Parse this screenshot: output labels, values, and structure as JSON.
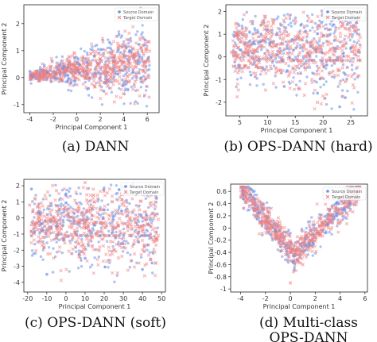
{
  "colors": {
    "source": "#6d8fe6",
    "target": "#f08080"
  },
  "chart_data": [
    {
      "type": "scatter",
      "shape": "dann",
      "caption": "(a) DANN",
      "xlabel": "Principal Component 1",
      "ylabel": "Principal Component 2",
      "xlim": [
        -4.5,
        7
      ],
      "ylim": [
        -1.3,
        2.7
      ],
      "xticks": [
        -4,
        -2,
        0,
        2,
        4,
        6
      ],
      "yticks": [
        -1,
        0,
        1,
        2
      ],
      "legend": {
        "position": "top-right",
        "entries": [
          "Source Domain",
          "Target Domain"
        ]
      },
      "series": [
        {
          "name": "Source Domain",
          "x": [
            -3.8,
            -2.5,
            -1.2,
            0.2,
            1.5,
            2.8,
            3.6,
            4.5,
            5.2,
            2.3,
            3.9,
            1.0,
            -0.5,
            4.8,
            5.8
          ],
          "y": [
            0.05,
            0.2,
            0.35,
            0.5,
            0.8,
            1.3,
            1.6,
            1.0,
            0.6,
            -0.5,
            -0.3,
            -0.4,
            -0.2,
            0.2,
            1.4
          ]
        },
        {
          "name": "Target Domain",
          "x": [
            -3.9,
            -3.0,
            -2.0,
            -1.0,
            0.0,
            1.0,
            2.0,
            3.0,
            3.5,
            4.0,
            1.5,
            -0.5,
            2.5,
            4.5
          ],
          "y": [
            0.0,
            0.1,
            0.2,
            0.3,
            0.35,
            0.5,
            0.7,
            0.9,
            1.1,
            0.8,
            -0.3,
            -0.2,
            -0.6,
            1.4
          ]
        }
      ]
    },
    {
      "type": "scatter",
      "shape": "band",
      "caption": "(b) OPS-DANN (hard)",
      "xlabel": "Principal Component 1",
      "ylabel": "Principal Component 2",
      "xlim": [
        2.5,
        28
      ],
      "ylim": [
        -2.6,
        2.3
      ],
      "xticks": [
        5,
        10,
        15,
        20,
        25
      ],
      "yticks": [
        -2,
        -1,
        0,
        1,
        2
      ],
      "legend": {
        "position": "top-right",
        "entries": [
          "Source Domain",
          "Target Domain"
        ]
      },
      "series": [
        {
          "name": "Source Domain",
          "x": [
            4,
            7,
            10,
            13,
            16,
            19,
            22,
            24,
            26,
            21,
            23,
            25
          ],
          "y": [
            0.9,
            -0.8,
            1.2,
            -1.3,
            1.4,
            -1.6,
            1.7,
            -1.8,
            1.5,
            2.0,
            -2.2,
            0.4
          ]
        },
        {
          "name": "Target Domain",
          "x": [
            3.5,
            6,
            9,
            12,
            15,
            18,
            21,
            24,
            26.5,
            14,
            19
          ],
          "y": [
            0.2,
            -0.4,
            0.5,
            -0.6,
            0.9,
            -1.0,
            1.2,
            -1.1,
            0.3,
            1.8,
            -2.0
          ]
        }
      ]
    },
    {
      "type": "scatter",
      "shape": "band",
      "caption": "(c) OPS-DANN (soft)",
      "xlabel": "Principal Component 1",
      "ylabel": "Principal Component 2",
      "xlim": [
        -22,
        52
      ],
      "ylim": [
        -4.6,
        2.4
      ],
      "xticks": [
        -20,
        -10,
        0,
        10,
        20,
        30,
        40,
        50
      ],
      "yticks": [
        -4,
        -3,
        -2,
        -1,
        0,
        1,
        2
      ],
      "legend": {
        "position": "top-right",
        "entries": [
          "Source Domain",
          "Target Domain"
        ]
      },
      "series": [
        {
          "name": "Source Domain",
          "x": [
            -18,
            -10,
            0,
            10,
            20,
            30,
            38,
            42,
            45,
            35,
            40
          ],
          "y": [
            1.8,
            -3.5,
            1.5,
            -2.5,
            0.5,
            1.9,
            -1.5,
            0.2,
            -2.8,
            2.1,
            -3.2
          ]
        },
        {
          "name": "Target Domain",
          "x": [
            -19,
            -12,
            -5,
            5,
            15,
            25,
            33,
            40,
            44,
            10
          ],
          "y": [
            0.8,
            -1.2,
            1.7,
            -1.8,
            1.0,
            -2.0,
            1.5,
            -0.5,
            0.9,
            2.2
          ]
        }
      ]
    },
    {
      "type": "scatter",
      "shape": "v",
      "caption": "(d) Multi-class OPS-DANN",
      "xlabel": "Principal Component 1",
      "ylabel": "Principal Component 2",
      "xlim": [
        -4.8,
        6.2
      ],
      "ylim": [
        -1.05,
        0.72
      ],
      "xticks": [
        -4,
        -2,
        0,
        2,
        4,
        6
      ],
      "yticks": [
        -1.0,
        -0.8,
        -0.6,
        -0.4,
        -0.2,
        0.0,
        0.2,
        0.4,
        0.6
      ],
      "legend": {
        "position": "top-right",
        "entries": [
          "Source Domain",
          "Target Domain"
        ]
      },
      "series": [
        {
          "name": "Source Domain",
          "x": [
            -3.8,
            -2.5,
            -1.2,
            0.2,
            1.5,
            3.0,
            4.2,
            5.2,
            -3.0,
            4.8
          ],
          "y": [
            0.55,
            0.25,
            -0.05,
            -0.55,
            -0.25,
            0.05,
            0.3,
            0.55,
            0.6,
            0.4
          ]
        },
        {
          "name": "Target Domain",
          "x": [
            -3.6,
            -2.0,
            -0.8,
            0.3,
            1.8,
            3.2,
            4.5,
            0.0,
            1.0
          ],
          "y": [
            0.45,
            0.15,
            -0.2,
            -0.45,
            -0.2,
            0.1,
            0.35,
            -0.9,
            -0.6
          ]
        }
      ]
    }
  ]
}
